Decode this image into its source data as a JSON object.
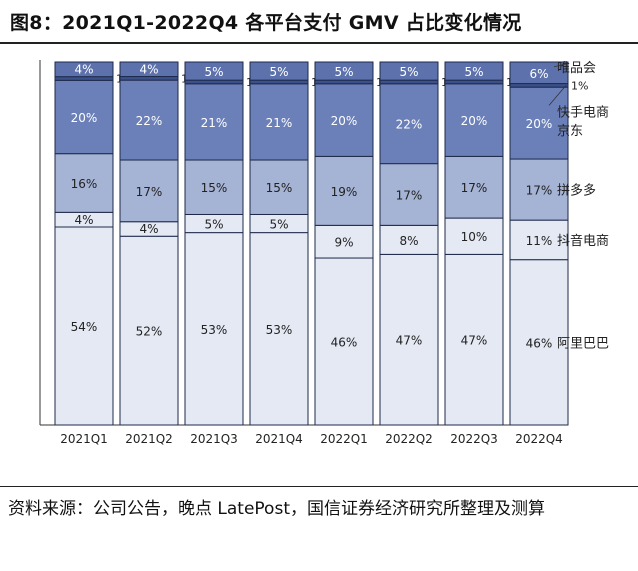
{
  "header": {
    "title": "图8：2021Q1-2022Q4 各平台支付 GMV 占比变化情况"
  },
  "source": {
    "text": "资料来源：公司公告，晚点 LatePost，国信证券经济研究所整理及测算"
  },
  "chart_data": {
    "type": "bar",
    "stacked": true,
    "title": "2021Q1-2022Q4 各平台支付 GMV 占比变化情况",
    "xlabel": "",
    "ylabel": "",
    "ylim": [
      0,
      100
    ],
    "categories": [
      "2021Q1",
      "2021Q2",
      "2021Q3",
      "2021Q4",
      "2022Q1",
      "2022Q2",
      "2022Q3",
      "2022Q4"
    ],
    "series": [
      {
        "name": "阿里巴巴",
        "values": [
          54,
          52,
          53,
          53,
          46,
          47,
          47,
          46
        ],
        "color": "#e4e9f4",
        "text_color": "#222222"
      },
      {
        "name": "抖音电商",
        "values": [
          4,
          4,
          5,
          5,
          9,
          8,
          10,
          11
        ],
        "color": "#e4e9f4",
        "text_color": "#222222"
      },
      {
        "name": "拼多多",
        "values": [
          16,
          17,
          15,
          15,
          19,
          17,
          17,
          17
        ],
        "color": "#a5b3d5",
        "text_color": "#222222"
      },
      {
        "name": "京东",
        "values": [
          20,
          22,
          21,
          21,
          20,
          22,
          20,
          20
        ],
        "color": "#6b80b9",
        "text_color": "#ffffff"
      },
      {
        "name": "快手电商",
        "values": [
          1,
          1,
          1,
          1,
          1,
          1,
          1,
          1
        ],
        "color": "#3b5189",
        "text_color": "#222222"
      },
      {
        "name": "唯品会",
        "values": [
          4,
          4,
          5,
          5,
          5,
          5,
          5,
          6
        ],
        "color": "#5d72ad",
        "text_color": "#ffffff"
      }
    ]
  }
}
